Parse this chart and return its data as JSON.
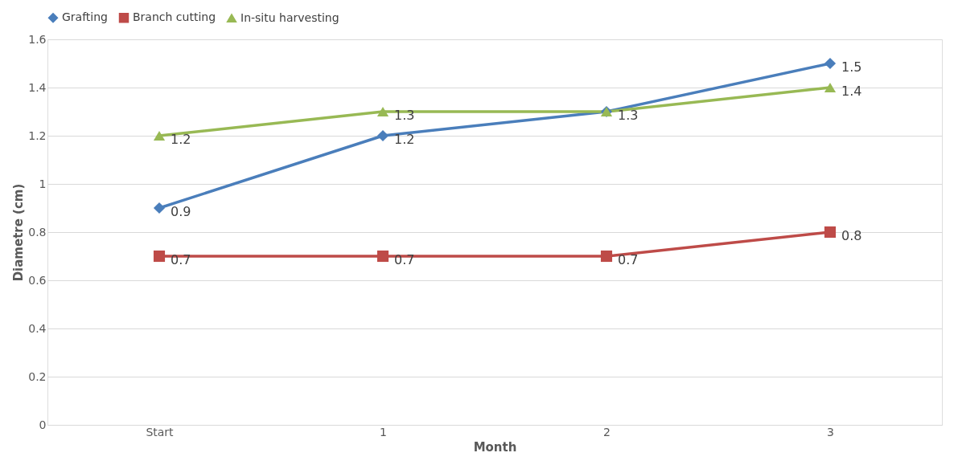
{
  "chart_data": {
    "type": "line",
    "xlabel": "Month",
    "ylabel": "Diametre (cm)",
    "categories": [
      "Start",
      "1",
      "2",
      "3"
    ],
    "series": [
      {
        "name": "Grafting",
        "color": "#4a7ebb",
        "marker": "diamond",
        "values": [
          0.9,
          1.2,
          1.3,
          1.5
        ],
        "value_labels": [
          "0.9",
          "1.2",
          "1.3",
          "1.5"
        ]
      },
      {
        "name": "Branch cutting",
        "color": "#be4b48",
        "marker": "square",
        "values": [
          0.7,
          0.7,
          0.7,
          0.8
        ],
        "value_labels": [
          "0.7",
          "0.7",
          "0.7",
          "0.8"
        ]
      },
      {
        "name": "In-situ harvesting",
        "color": "#98b954",
        "marker": "triangle",
        "values": [
          1.2,
          1.3,
          1.3,
          1.4
        ],
        "value_labels": [
          "1.2",
          "1.3",
          null,
          "1.4"
        ]
      }
    ],
    "ylim": [
      0,
      1.6
    ],
    "yticks": [
      0,
      0.2,
      0.4,
      0.6,
      0.8,
      1,
      1.2,
      1.4,
      1.6
    ],
    "grid": "y",
    "legend": "top",
    "line_style": "solid"
  }
}
